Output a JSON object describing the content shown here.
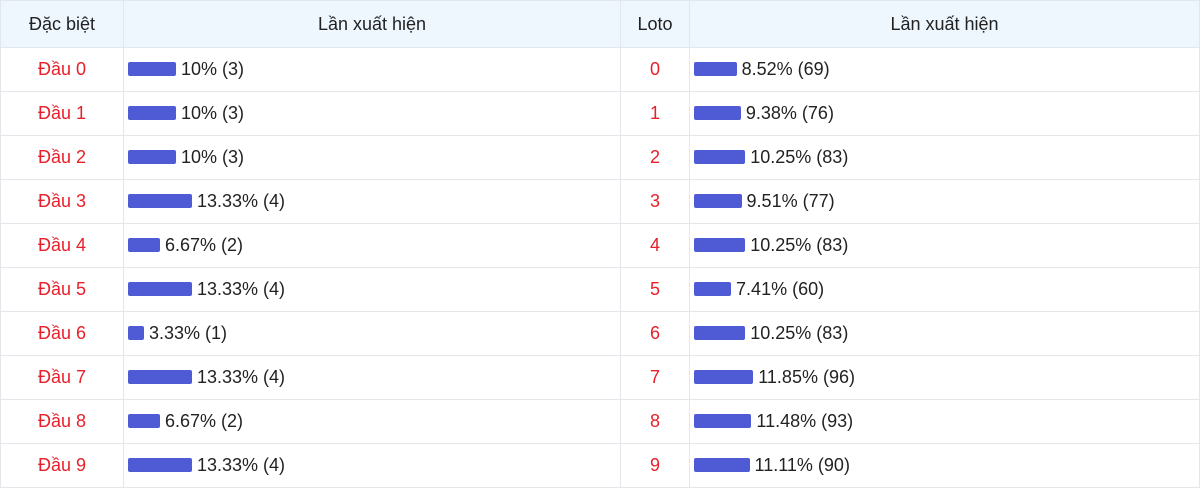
{
  "headers": [
    "Đặc biệt",
    "Lần xuất hiện",
    "Loto",
    "Lần xuất hiện"
  ],
  "bar_color": "#4f5bd5",
  "label_color": "#e8202a",
  "rows": [
    {
      "dau": "Đầu 0",
      "dau_pct": 10,
      "dau_text": "10% (3)",
      "loto": "0",
      "loto_pct": 8.52,
      "loto_text": "8.52% (69)"
    },
    {
      "dau": "Đầu 1",
      "dau_pct": 10,
      "dau_text": "10% (3)",
      "loto": "1",
      "loto_pct": 9.38,
      "loto_text": "9.38% (76)"
    },
    {
      "dau": "Đầu 2",
      "dau_pct": 10,
      "dau_text": "10% (3)",
      "loto": "2",
      "loto_pct": 10.25,
      "loto_text": "10.25% (83)"
    },
    {
      "dau": "Đầu 3",
      "dau_pct": 13.33,
      "dau_text": "13.33% (4)",
      "loto": "3",
      "loto_pct": 9.51,
      "loto_text": "9.51% (77)"
    },
    {
      "dau": "Đầu 4",
      "dau_pct": 6.67,
      "dau_text": "6.67% (2)",
      "loto": "4",
      "loto_pct": 10.25,
      "loto_text": "10.25% (83)"
    },
    {
      "dau": "Đầu 5",
      "dau_pct": 13.33,
      "dau_text": "13.33% (4)",
      "loto": "5",
      "loto_pct": 7.41,
      "loto_text": "7.41% (60)"
    },
    {
      "dau": "Đầu 6",
      "dau_pct": 3.33,
      "dau_text": "3.33% (1)",
      "loto": "6",
      "loto_pct": 10.25,
      "loto_text": "10.25% (83)"
    },
    {
      "dau": "Đầu 7",
      "dau_pct": 13.33,
      "dau_text": "13.33% (4)",
      "loto": "7",
      "loto_pct": 11.85,
      "loto_text": "11.85% (96)"
    },
    {
      "dau": "Đầu 8",
      "dau_pct": 6.67,
      "dau_text": "6.67% (2)",
      "loto": "8",
      "loto_pct": 11.48,
      "loto_text": "11.48% (93)"
    },
    {
      "dau": "Đầu 9",
      "dau_pct": 13.33,
      "dau_text": "13.33% (4)",
      "loto": "9",
      "loto_pct": 11.11,
      "loto_text": "11.11% (90)"
    }
  ]
}
